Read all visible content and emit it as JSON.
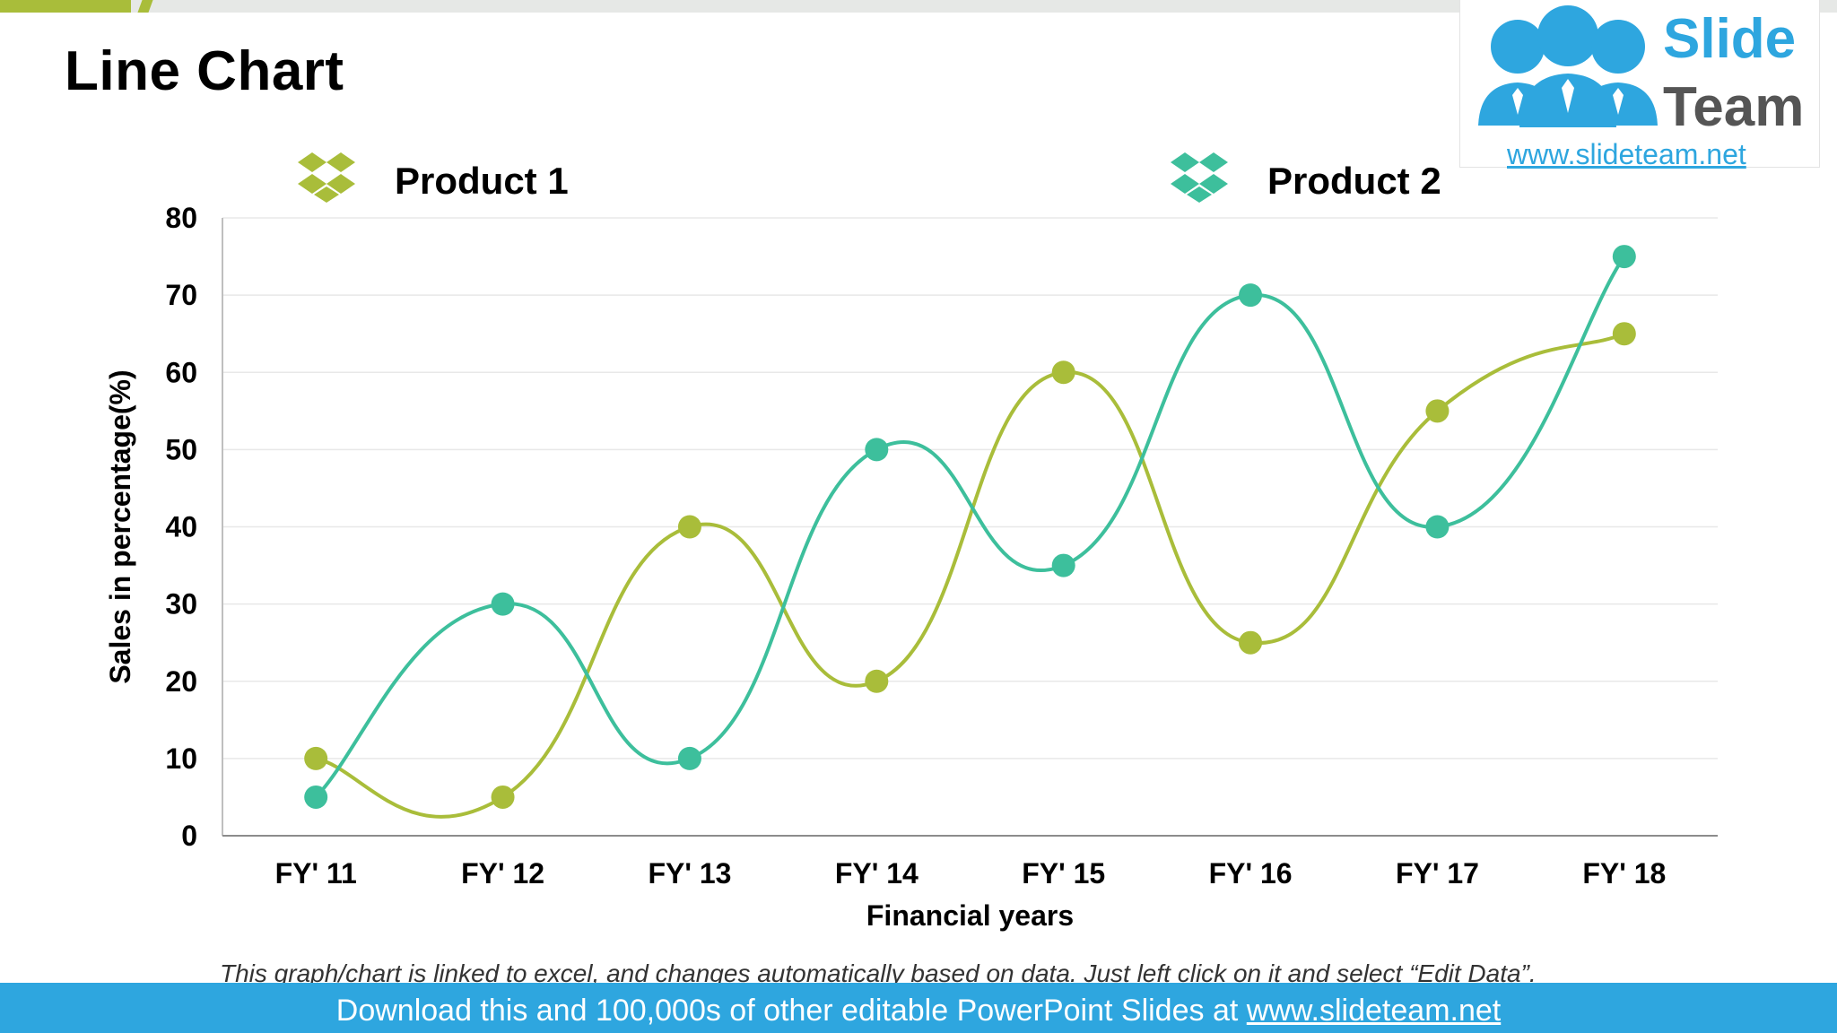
{
  "slide": {
    "title": "Line Chart",
    "note": "This graph/chart is linked to excel, and changes automatically based on data. Just left click on it and select “Edit Data”."
  },
  "logo": {
    "word1": "Slide",
    "word2": "Team",
    "url": "www.slideteam.net"
  },
  "footer": {
    "text": "Download this and 100,000s of other editable PowerPoint Slides at ",
    "link": "www.slideteam.net"
  },
  "legend": [
    {
      "label": "Product 1",
      "icon": "dropbox-icon",
      "color": "#a9bd3a"
    },
    {
      "label": "Product 2",
      "icon": "dropbox-icon",
      "color": "#3dbf9c"
    }
  ],
  "colors": {
    "product1": "#a9bd3a",
    "product2": "#3dbf9c",
    "brand_blue": "#2ea6df",
    "accent_green": "#a9bd3a"
  },
  "chart_data": {
    "type": "line",
    "title": "",
    "xlabel": "Financial years",
    "ylabel": "Sales in percentage(%)",
    "categories": [
      "FY' 11",
      "FY' 12",
      "FY' 13",
      "FY' 14",
      "FY' 15",
      "FY' 16",
      "FY' 17",
      "FY' 18"
    ],
    "ylim": [
      0,
      80
    ],
    "yticks": [
      0,
      10,
      20,
      30,
      40,
      50,
      60,
      70,
      80
    ],
    "smooth": true,
    "grid": true,
    "legend_position": "top",
    "series": [
      {
        "name": "Product 1",
        "values": [
          10,
          5,
          40,
          20,
          60,
          25,
          55,
          65
        ],
        "color": "#a9bd3a"
      },
      {
        "name": "Product 2",
        "values": [
          5,
          30,
          10,
          50,
          35,
          70,
          40,
          75
        ],
        "color": "#3dbf9c"
      }
    ]
  }
}
